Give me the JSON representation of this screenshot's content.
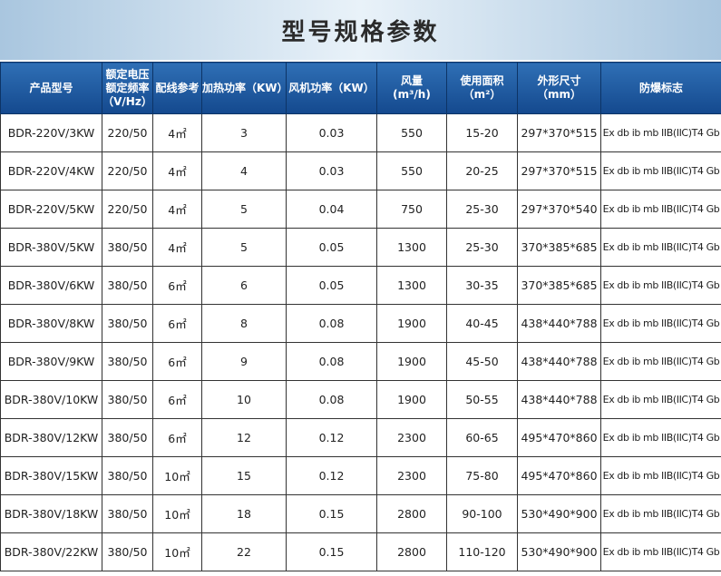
{
  "header": {
    "title": "型号规格参数"
  },
  "table": {
    "columns": [
      [
        "产品型号"
      ],
      [
        "额定电压",
        "额定频率",
        "（V/Hz）"
      ],
      [
        "配线参考"
      ],
      [
        "加热功率（KW）"
      ],
      [
        "风机功率（KW）"
      ],
      [
        "风量",
        "(m³/h)"
      ],
      [
        "使用面积",
        "（m²）"
      ],
      [
        "外形尺寸",
        "（mm）"
      ],
      [
        "防爆标志"
      ]
    ],
    "rows": [
      [
        "BDR-220V/3KW",
        "220/50",
        "4㎡",
        "3",
        "0.03",
        "550",
        "15-20",
        "297*370*515",
        "Ex db ib mb IIB(IIC)T4 Gb"
      ],
      [
        "BDR-220V/4KW",
        "220/50",
        "4㎡",
        "4",
        "0.03",
        "550",
        "20-25",
        "297*370*515",
        "Ex db ib mb IIB(IIC)T4 Gb"
      ],
      [
        "BDR-220V/5KW",
        "220/50",
        "4㎡",
        "5",
        "0.04",
        "750",
        "25-30",
        "297*370*540",
        "Ex db ib mb IIB(IIC)T4 Gb"
      ],
      [
        "BDR-380V/5KW",
        "380/50",
        "4㎡",
        "5",
        "0.05",
        "1300",
        "25-30",
        "370*385*685",
        "Ex db ib mb IIB(IIC)T4 Gb"
      ],
      [
        "BDR-380V/6KW",
        "380/50",
        "6㎡",
        "6",
        "0.05",
        "1300",
        "30-35",
        "370*385*685",
        "Ex db ib mb IIB(IIC)T4 Gb"
      ],
      [
        "BDR-380V/8KW",
        "380/50",
        "6㎡",
        "8",
        "0.08",
        "1900",
        "40-45",
        "438*440*788",
        "Ex db ib mb IIB(IIC)T4 Gb"
      ],
      [
        "BDR-380V/9KW",
        "380/50",
        "6㎡",
        "9",
        "0.08",
        "1900",
        "45-50",
        "438*440*788",
        "Ex db ib mb IIB(IIC)T4 Gb"
      ],
      [
        "BDR-380V/10KW",
        "380/50",
        "6㎡",
        "10",
        "0.08",
        "1900",
        "50-55",
        "438*440*788",
        "Ex db ib mb IIB(IIC)T4 Gb"
      ],
      [
        "BDR-380V/12KW",
        "380/50",
        "6㎡",
        "12",
        "0.12",
        "2300",
        "60-65",
        "495*470*860",
        "Ex db ib mb IIB(IIC)T4 Gb"
      ],
      [
        "BDR-380V/15KW",
        "380/50",
        "10㎡",
        "15",
        "0.12",
        "2300",
        "75-80",
        "495*470*860",
        "Ex db ib mb IIB(IIC)T4 Gb"
      ],
      [
        "BDR-380V/18KW",
        "380/50",
        "10㎡",
        "18",
        "0.15",
        "2800",
        "90-100",
        "530*490*900",
        "Ex db ib mb IIB(IIC)T4 Gb"
      ],
      [
        "BDR-380V/22KW",
        "380/50",
        "10㎡",
        "22",
        "0.15",
        "2800",
        "110-120",
        "530*490*900",
        "Ex db ib mb IIB(IIC)T4 Gb"
      ]
    ]
  }
}
